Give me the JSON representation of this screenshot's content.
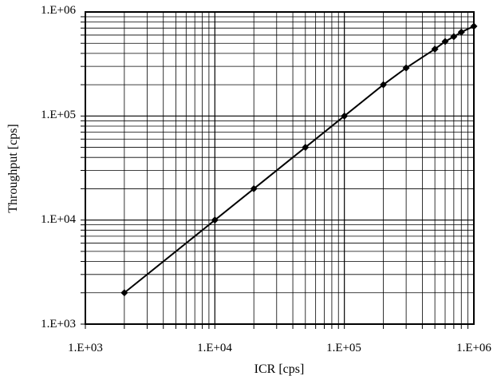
{
  "chart_data": {
    "type": "scatter",
    "xlabel": "ICR [cps]",
    "ylabel": "Throughput [cps]",
    "xscale": "log",
    "yscale": "log",
    "xlim": [
      1000,
      1000000
    ],
    "ylim": [
      1000,
      1000000
    ],
    "x_tick_labels": [
      "1.E+03",
      "1.E+04",
      "1.E+05",
      "1.E+06"
    ],
    "y_tick_labels": [
      "1.E+03",
      "1.E+04",
      "1.E+05",
      "1.E+06"
    ],
    "grid": true,
    "legend": "none",
    "series": [
      {
        "marker": "diamond",
        "line": "fit",
        "x": [
          2000,
          10000,
          20000,
          50000,
          100000,
          200000,
          300000,
          500000,
          600000,
          700000,
          800000,
          1000000
        ],
        "y": [
          2000,
          10000,
          20000,
          50000,
          100000,
          200000,
          290000,
          440000,
          520000,
          580000,
          640000,
          730000
        ]
      }
    ],
    "colors": {
      "line": "#000000",
      "marker": "#000000",
      "grid": "#000000"
    }
  }
}
